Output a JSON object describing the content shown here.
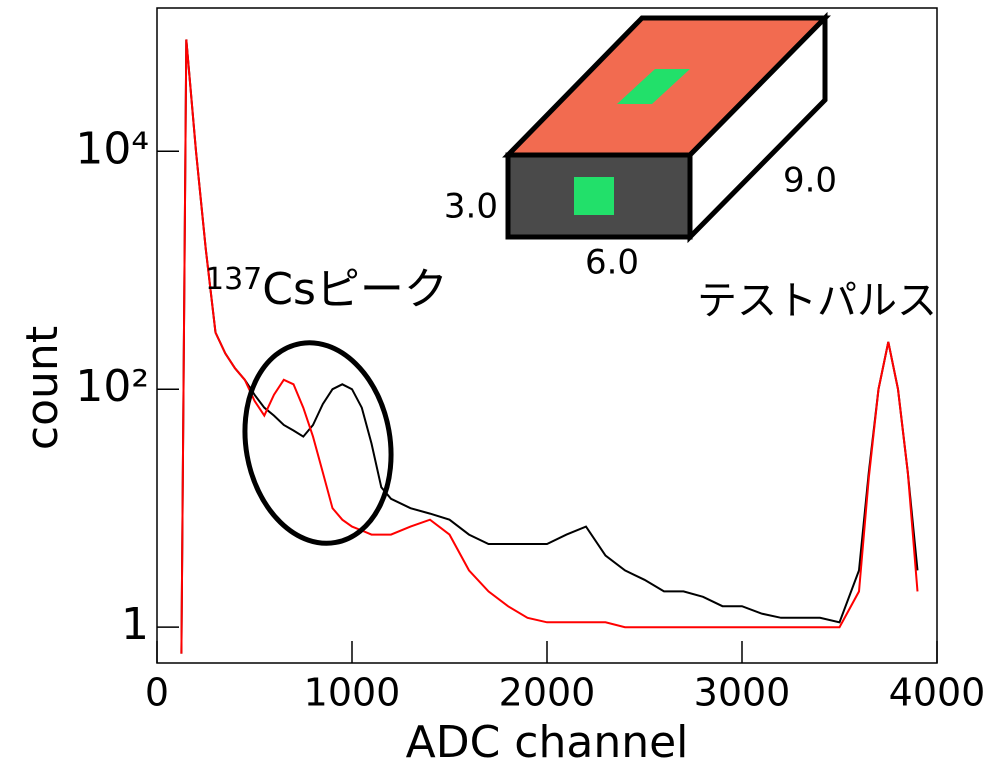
{
  "chart_data": {
    "type": "line",
    "x_label": "ADC channel",
    "y_label": "count",
    "log_y": true,
    "xlim": [
      0,
      4000
    ],
    "ylim": [
      0.5,
      160000
    ],
    "xticks": [
      0,
      1000,
      2000,
      3000,
      4000
    ],
    "yticks": [
      1,
      {
        "value": 100,
        "label": "10²"
      },
      {
        "value": 10000,
        "label": "10⁴"
      }
    ],
    "x": [
      125,
      150,
      200,
      250,
      300,
      350,
      400,
      450,
      500,
      550,
      600,
      650,
      700,
      750,
      800,
      850,
      900,
      950,
      1000,
      1050,
      1100,
      1150,
      1200,
      1300,
      1400,
      1500,
      1600,
      1700,
      1800,
      1900,
      2000,
      2100,
      2200,
      2300,
      2400,
      2500,
      2600,
      2700,
      2800,
      2900,
      3000,
      3100,
      3200,
      3300,
      3400,
      3500,
      3600,
      3650,
      3700,
      3750,
      3800,
      3850,
      3900
    ],
    "series": [
      {
        "color": "#000000",
        "values": [
          0.6,
          87000,
          10000,
          1500,
          300,
          200,
          150,
          120,
          90,
          70,
          60,
          50,
          45,
          40,
          50,
          75,
          100,
          110,
          100,
          70,
          35,
          15,
          12,
          10,
          9,
          8,
          6,
          5,
          5,
          5,
          5,
          6,
          7,
          4,
          3,
          2.5,
          2,
          2,
          1.8,
          1.5,
          1.5,
          1.3,
          1.2,
          1.2,
          1.2,
          1.1,
          3,
          20,
          100,
          250,
          100,
          20,
          3
        ]
      },
      {
        "color": "#ff0000",
        "values": [
          0.6,
          87000,
          10000,
          1500,
          300,
          200,
          150,
          120,
          80,
          60,
          90,
          120,
          110,
          70,
          40,
          20,
          10,
          8,
          7,
          6.5,
          6,
          6,
          6,
          7,
          8,
          6,
          3,
          2,
          1.5,
          1.2,
          1.1,
          1.1,
          1.1,
          1.1,
          1,
          1,
          1,
          1,
          1,
          1,
          1,
          1,
          1,
          1,
          1,
          1,
          2,
          18,
          100,
          250,
          100,
          20,
          2
        ]
      }
    ],
    "annotations": {
      "peak": {
        "mass": "137",
        "text": "Csピーク"
      },
      "pulse": "テストパルス",
      "height": "3.0",
      "width": "6.0",
      "depth": "9.0"
    }
  }
}
